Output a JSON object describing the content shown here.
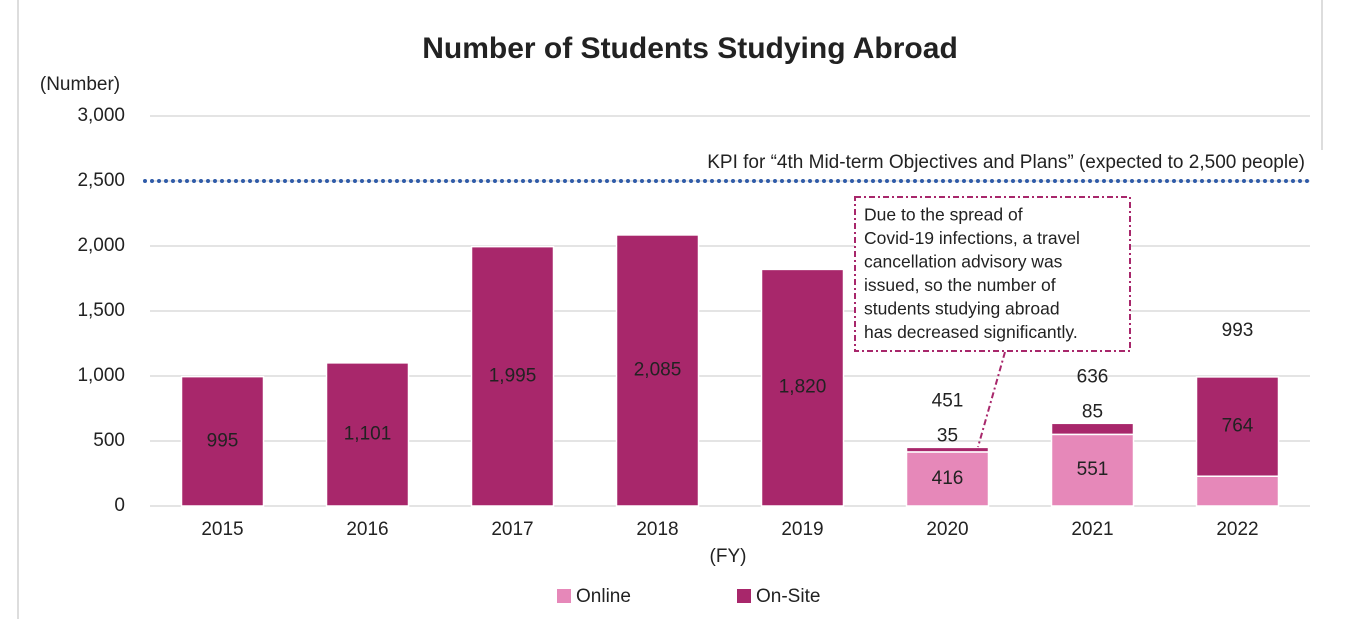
{
  "chart_data": {
    "type": "stacked_bar",
    "title": "Number of Students Studying Abroad",
    "y_axis_label": "(Number)",
    "x_axis_label": "(FY)",
    "categories": [
      "2015",
      "2016",
      "2017",
      "2018",
      "2019",
      "2020",
      "2021",
      "2022"
    ],
    "series": [
      {
        "name": "Online",
        "color": "#e688b9",
        "values": [
          null,
          null,
          null,
          null,
          null,
          416,
          551,
          229
        ]
      },
      {
        "name": "On-Site",
        "color": "#a8276b",
        "values": [
          995,
          1101,
          1995,
          2085,
          1820,
          35,
          85,
          764
        ],
        "value_labels": [
          "995",
          "1,101",
          "1,995",
          "2,085",
          "1,820",
          "35",
          "85",
          "764"
        ]
      }
    ],
    "totals": [
      null,
      null,
      null,
      null,
      null,
      451,
      636,
      993
    ],
    "ylim": [
      0,
      3000
    ],
    "yticks": [
      0,
      500,
      {
        "value": 1000,
        "label": "1,000"
      },
      {
        "value": 1500,
        "label": "1,500"
      },
      {
        "value": 2000,
        "label": "2,000"
      },
      {
        "value": 2500,
        "label": "2,500"
      },
      {
        "value": 3000,
        "label": "3,000"
      }
    ],
    "grid": true,
    "reference_line": {
      "value": 2500,
      "label": "KPI for “4th Mid-term Objectives and Plans” (expected to 2,500 people)",
      "color": "#2f5ba8"
    },
    "callout": [
      "Due to the spread of",
      "Covid-19 infections, a travel",
      "cancellation advisory was",
      "issued, so the number of",
      "students studying abroad",
      "has decreased significantly."
    ],
    "legend": "bottom"
  }
}
